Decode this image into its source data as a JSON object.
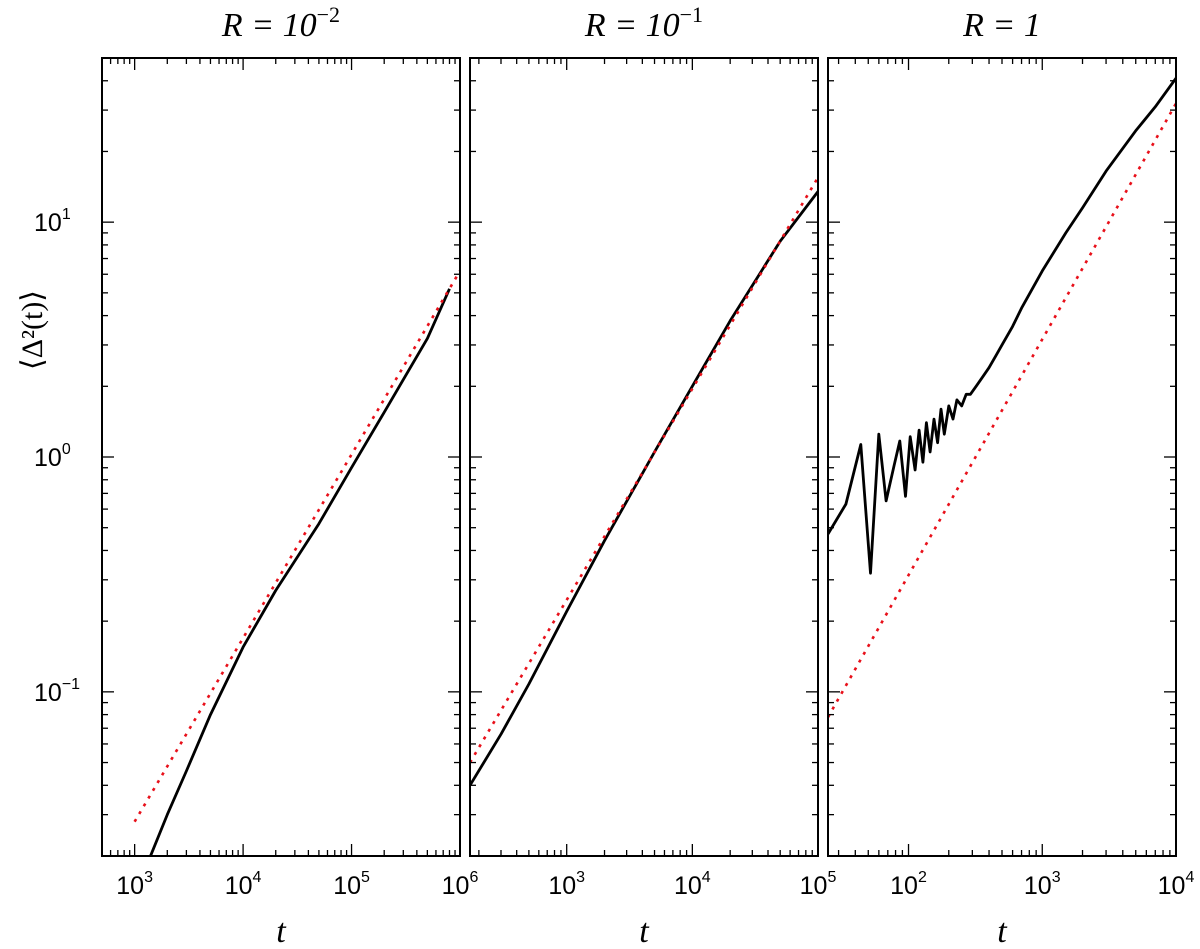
{
  "figure": {
    "ylabel": "⟨Δ²(t)⟩"
  },
  "colors": {
    "simulation": "#000000",
    "reference": "#e8101a"
  },
  "chart_data": [
    {
      "type": "line",
      "title": "R = 10",
      "title_exponent": "−2",
      "xlabel": "t",
      "ylabel": "⟨Δ²(t)⟩",
      "x_scale": "log",
      "y_scale": "log",
      "xlim": [
        500,
        1000000
      ],
      "ylim": [
        0.02,
        50
      ],
      "x_ticks": [
        {
          "value": 1000,
          "label": "10",
          "exp": "3"
        },
        {
          "value": 10000,
          "label": "10",
          "exp": "4"
        },
        {
          "value": 100000,
          "label": "10",
          "exp": "5"
        },
        {
          "value": 1000000,
          "label": "10",
          "exp": "6"
        }
      ],
      "y_ticks": [
        {
          "value": 0.1,
          "label": "10",
          "exp": "−1"
        },
        {
          "value": 1,
          "label": "10",
          "exp": "0"
        },
        {
          "value": 10,
          "label": "10",
          "exp": "1"
        }
      ],
      "series": [
        {
          "style": "solid",
          "color": "#000000",
          "x": [
            1400,
            2000,
            3000,
            5000,
            10000,
            20000,
            50000,
            100000,
            200000,
            500000,
            800000
          ],
          "y": [
            0.02,
            0.03,
            0.046,
            0.08,
            0.155,
            0.27,
            0.52,
            0.9,
            1.55,
            3.2,
            5.2
          ]
        },
        {
          "style": "dotted",
          "color": "#e8101a",
          "x": [
            1000,
            1000000
          ],
          "y": [
            0.028,
            6.2
          ]
        }
      ]
    },
    {
      "type": "line",
      "title": "R = 10",
      "title_exponent": "−1",
      "xlabel": "t",
      "ylabel": "",
      "x_scale": "log",
      "y_scale": "log",
      "xlim": [
        170,
        100000
      ],
      "ylim": [
        0.02,
        50
      ],
      "x_ticks": [
        {
          "value": 1000,
          "label": "10",
          "exp": "3"
        },
        {
          "value": 10000,
          "label": "10",
          "exp": "4"
        },
        {
          "value": 100000,
          "label": "10",
          "exp": "5"
        }
      ],
      "y_ticks": [],
      "series": [
        {
          "style": "solid",
          "color": "#000000",
          "x": [
            170,
            300,
            500,
            1000,
            2000,
            5000,
            10000,
            20000,
            50000,
            100000
          ],
          "y": [
            0.04,
            0.066,
            0.108,
            0.22,
            0.44,
            1.05,
            2.0,
            3.8,
            8.3,
            13.5
          ]
        },
        {
          "style": "dotted",
          "color": "#e8101a",
          "x": [
            170,
            100000
          ],
          "y": [
            0.05,
            15.5
          ]
        }
      ]
    },
    {
      "type": "line",
      "title": "R = 1",
      "title_exponent": "",
      "xlabel": "t",
      "ylabel": "",
      "x_scale": "log",
      "y_scale": "log",
      "xlim": [
        25,
        10000
      ],
      "ylim": [
        0.02,
        50
      ],
      "x_ticks": [
        {
          "value": 100,
          "label": "10",
          "exp": "2"
        },
        {
          "value": 1000,
          "label": "10",
          "exp": "3"
        },
        {
          "value": 10000,
          "label": "10",
          "exp": "4"
        }
      ],
      "y_ticks": [],
      "series": [
        {
          "style": "solid",
          "color": "#000000",
          "x": [
            25,
            34,
            44,
            52,
            60,
            68,
            78,
            86,
            95,
            103,
            112,
            120,
            128,
            136,
            145,
            155,
            165,
            175,
            185,
            200,
            215,
            230,
            250,
            270,
            290,
            320,
            360,
            400,
            450,
            500,
            600,
            700,
            1000,
            1500,
            2000,
            3000,
            5000,
            7000,
            10000
          ],
          "y": [
            0.47,
            0.63,
            1.13,
            0.32,
            1.25,
            0.65,
            0.92,
            1.17,
            0.68,
            1.22,
            0.88,
            1.3,
            0.95,
            1.4,
            1.05,
            1.45,
            1.15,
            1.6,
            1.25,
            1.65,
            1.45,
            1.75,
            1.65,
            1.85,
            1.85,
            2.0,
            2.2,
            2.4,
            2.7,
            3.0,
            3.6,
            4.3,
            6.2,
            9.0,
            11.5,
            16.5,
            24.5,
            31.0,
            41.0
          ]
        },
        {
          "style": "dotted",
          "color": "#e8101a",
          "x": [
            25,
            10000
          ],
          "y": [
            0.078,
            32.0
          ]
        }
      ]
    }
  ]
}
